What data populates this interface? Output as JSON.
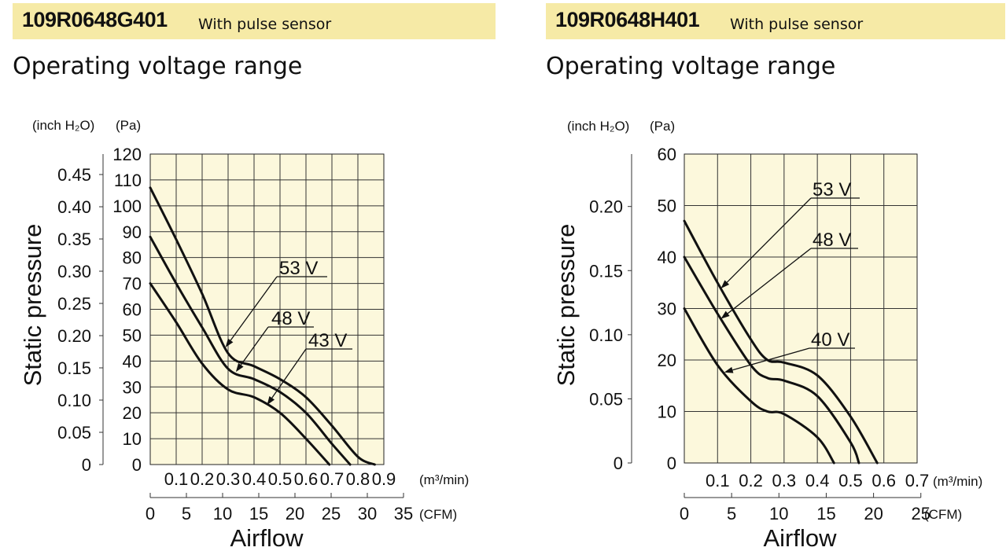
{
  "panels": [
    {
      "model": "109R0648G401",
      "desc": "With pulse sensor",
      "subtitle": "Operating voltage range"
    },
    {
      "model": "109R0648H401",
      "desc": "With pulse sensor",
      "subtitle": "Operating voltage range"
    }
  ],
  "colors": {
    "plot_bg": "#fcf8dc",
    "header_bg": "#f6eaa6",
    "curve": "#111111"
  },
  "chart_data": [
    {
      "type": "line",
      "ylabel": "Static pressure",
      "xlabel": "Airflow",
      "y_unit_pa": "(Pa)",
      "y_unit_inch": "(inch H₂O)",
      "x_unit_m3": "(m³/min)",
      "x_unit_cfm": "(CFM)",
      "xlim_m3min": [
        0,
        0.9
      ],
      "ylim_pa": [
        0,
        120
      ],
      "x_ticks_m3min": [
        "0.1",
        "0.2",
        "0.3",
        "0.4",
        "0.5",
        "0.6",
        "0.7",
        "0.8",
        "0.9"
      ],
      "x_ticks_cfm": [
        "0",
        "5",
        "10",
        "15",
        "20",
        "25",
        "30",
        "35"
      ],
      "y_ticks_pa": [
        "0",
        "10",
        "20",
        "30",
        "40",
        "50",
        "60",
        "70",
        "80",
        "90",
        "100",
        "110",
        "120"
      ],
      "y_ticks_inch": [
        "0",
        "0.05",
        "0.10",
        "0.15",
        "0.20",
        "0.25",
        "0.30",
        "0.35",
        "0.40",
        "0.45"
      ],
      "grid": true,
      "series": [
        {
          "name": "53 V",
          "x": [
            0,
            0.1,
            0.2,
            0.3,
            0.4,
            0.5,
            0.6,
            0.7,
            0.8,
            0.865
          ],
          "y": [
            107,
            87,
            66,
            43,
            38,
            33,
            26,
            15,
            3,
            0
          ]
        },
        {
          "name": "48 V",
          "x": [
            0,
            0.1,
            0.2,
            0.3,
            0.4,
            0.5,
            0.6,
            0.7,
            0.77
          ],
          "y": [
            88,
            70,
            53,
            37,
            33,
            28,
            20,
            8,
            0
          ]
        },
        {
          "name": "43 V",
          "x": [
            0,
            0.1,
            0.2,
            0.3,
            0.4,
            0.5,
            0.6,
            0.69
          ],
          "y": [
            70,
            55,
            39,
            29,
            26,
            20,
            10,
            0
          ]
        }
      ]
    },
    {
      "type": "line",
      "ylabel": "Static pressure",
      "xlabel": "Airflow",
      "y_unit_pa": "(Pa)",
      "y_unit_inch": "(inch H₂O)",
      "x_unit_m3": "(m³/min)",
      "x_unit_cfm": "(CFM)",
      "xlim_m3min": [
        0,
        0.7
      ],
      "ylim_pa": [
        0,
        60
      ],
      "x_ticks_m3min": [
        "0.1",
        "0.2",
        "0.3",
        "0.4",
        "0.5",
        "0.6",
        "0.7"
      ],
      "x_ticks_cfm": [
        "0",
        "5",
        "10",
        "15",
        "20",
        "25"
      ],
      "y_ticks_pa": [
        "0",
        "10",
        "20",
        "30",
        "40",
        "50",
        "60"
      ],
      "y_ticks_inch": [
        "0",
        "0.05",
        "0.10",
        "0.15",
        "0.20"
      ],
      "grid": true,
      "series": [
        {
          "name": "53 V",
          "x": [
            0,
            0.1,
            0.2,
            0.25,
            0.3,
            0.4,
            0.5,
            0.58
          ],
          "y": [
            47,
            35,
            24,
            20,
            19.5,
            17,
            9,
            0
          ]
        },
        {
          "name": "48 V",
          "x": [
            0,
            0.1,
            0.2,
            0.25,
            0.3,
            0.4,
            0.5,
            0.525
          ],
          "y": [
            40,
            29,
            19,
            16.5,
            16,
            13,
            4,
            0
          ]
        },
        {
          "name": "40 V",
          "x": [
            0,
            0.1,
            0.2,
            0.25,
            0.3,
            0.4,
            0.45
          ],
          "y": [
            30,
            19,
            12,
            10,
            9.5,
            5,
            0
          ]
        }
      ]
    }
  ]
}
